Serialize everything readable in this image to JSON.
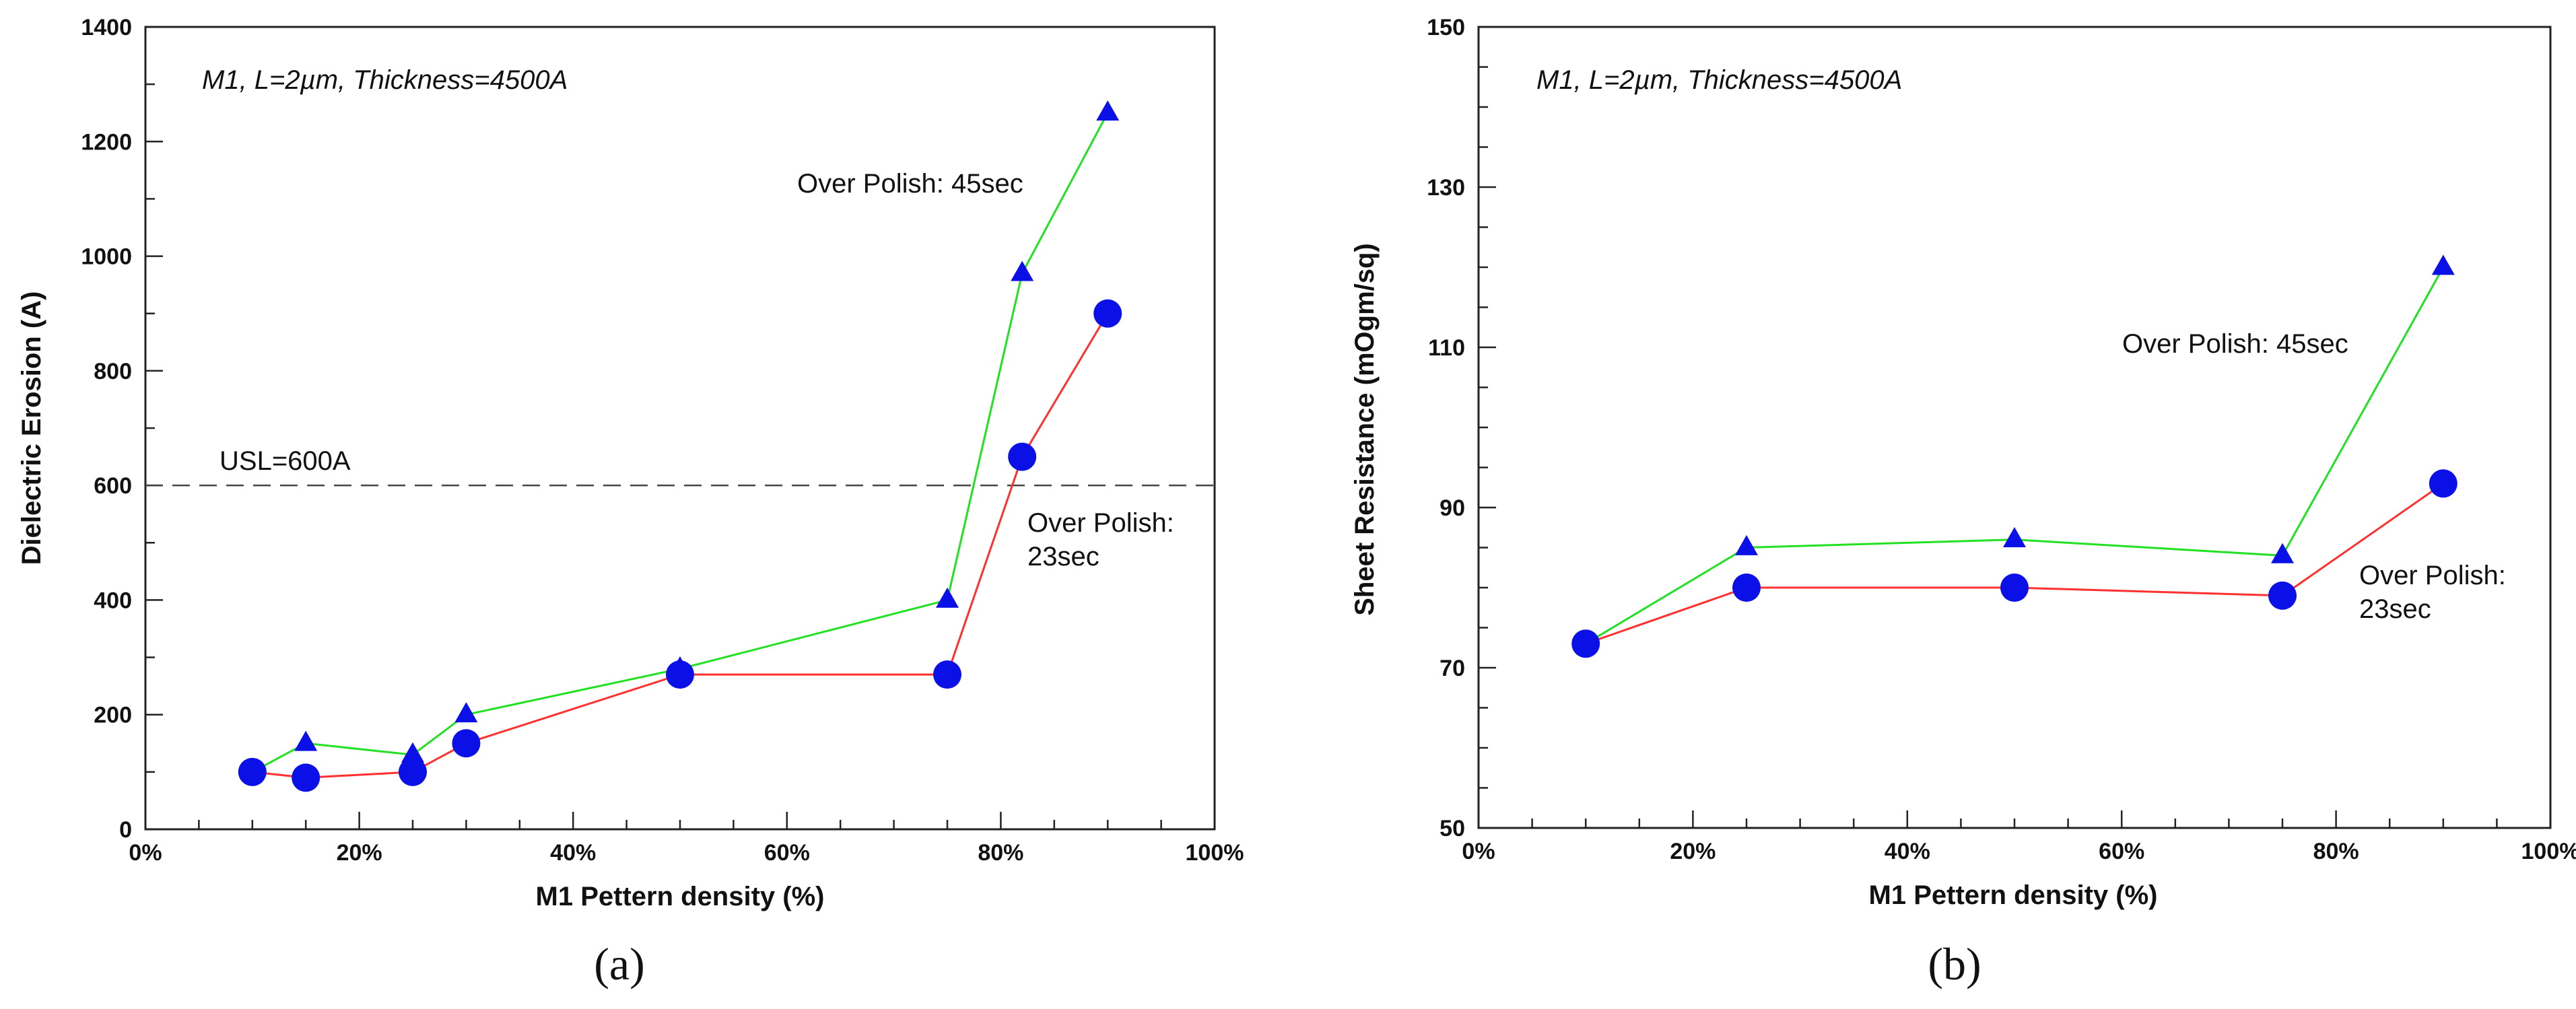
{
  "colors": {
    "series_green": "#22e022",
    "series_red": "#ff3030",
    "marker_blue": "#0a10e6",
    "axis": "#222222",
    "usl_line": "#444444"
  },
  "chart_data": [
    {
      "type": "line",
      "panel_label": "(a)",
      "title": "M1, L=2µm, Thickness=4500A",
      "xlabel": "M1 Pettern density (%)",
      "ylabel": "Dielectric Erosion (A)",
      "xlim": [
        0,
        100
      ],
      "ylim": [
        0,
        1400
      ],
      "x_ticks": [
        "0%",
        "20%",
        "40%",
        "60%",
        "80%",
        "100%"
      ],
      "y_ticks": [
        "0",
        "200",
        "400",
        "600",
        "800",
        "1000",
        "1200",
        "1400"
      ],
      "reference_line": {
        "y": 600,
        "label": "USL=600A",
        "style": "dashed"
      },
      "series": [
        {
          "name": "Over Polish: 45sec",
          "label": "Over Polish: 45sec",
          "marker": "triangle",
          "x": [
            10,
            15,
            25,
            30,
            50,
            75,
            82,
            90
          ],
          "values": [
            100,
            150,
            130,
            200,
            280,
            400,
            970,
            1250
          ]
        },
        {
          "name": "Over Polish: 23sec",
          "label": "Over Polish:",
          "label2": "23sec",
          "marker": "circle",
          "x": [
            10,
            15,
            25,
            30,
            50,
            75,
            82,
            90
          ],
          "values": [
            100,
            90,
            100,
            150,
            270,
            270,
            650,
            900
          ]
        }
      ]
    },
    {
      "type": "line",
      "panel_label": "(b)",
      "title": "M1, L=2µm, Thickness=4500A",
      "xlabel": "M1 Pettern density (%)",
      "ylabel": "Sheet Resistance (mOgm/sq)",
      "xlim": [
        0,
        100
      ],
      "ylim": [
        50,
        150
      ],
      "x_ticks": [
        "0%",
        "20%",
        "40%",
        "60%",
        "80%",
        "100%"
      ],
      "y_ticks": [
        "50",
        "70",
        "90",
        "110",
        "130",
        "150"
      ],
      "series": [
        {
          "name": "Over Polish: 45sec",
          "label": "Over Polish: 45sec",
          "marker": "triangle",
          "x": [
            10,
            25,
            50,
            75,
            90
          ],
          "values": [
            73,
            85,
            86,
            84,
            120
          ]
        },
        {
          "name": "Over Polish: 23sec",
          "label": "Over Polish:",
          "label2": "23sec",
          "marker": "circle",
          "x": [
            10,
            25,
            50,
            75,
            90
          ],
          "values": [
            73,
            80,
            80,
            79,
            93
          ]
        }
      ]
    }
  ]
}
